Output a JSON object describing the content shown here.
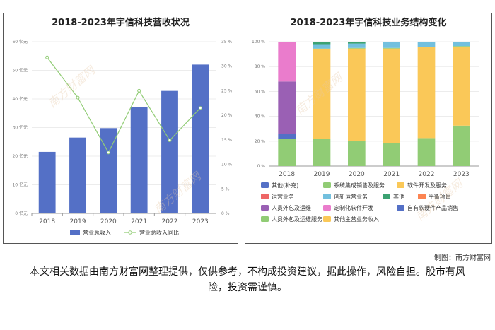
{
  "footer": {
    "credit": "制图：南方财富网",
    "disclaimer": "本文相关数据由南方财富网整理提供，仅供参考，不构成投资建议，据此操作，风险自担。股市有风险，投资需谨慎。"
  },
  "watermark_text": "南方财富网",
  "chart_data": [
    {
      "type": "bar",
      "title": "2018-2023年宇信科技营收状况",
      "categories": [
        "2018",
        "2019",
        "2020",
        "2021",
        "2022",
        "2023"
      ],
      "y_left": {
        "ticks": [
          "0 亿元",
          "10 亿元",
          "20 亿元",
          "30 亿元",
          "40 亿元",
          "50 亿元",
          "60 亿元"
        ],
        "ylim": [
          0,
          60
        ]
      },
      "y_right": {
        "ticks": [
          "0 %",
          "5 %",
          "10 %",
          "15 %",
          "20 %",
          "25 %",
          "30 %",
          "35 %"
        ],
        "ylim": [
          0,
          35
        ]
      },
      "series": [
        {
          "name": "营业总收入",
          "kind": "bar",
          "axis": "left",
          "color": "#5470c6",
          "values": [
            21.5,
            26.5,
            29.8,
            37.2,
            42.8,
            52.0
          ]
        },
        {
          "name": "营业总收入同比",
          "kind": "line",
          "axis": "right",
          "color": "#91cc75",
          "values": [
            31.8,
            23.6,
            12.4,
            25.0,
            14.9,
            21.5
          ]
        }
      ],
      "legend": "bottom",
      "grid": true
    },
    {
      "type": "bar",
      "stacked": true,
      "title": "2018-2023年宇信科技业务结构变化",
      "categories": [
        "2018",
        "2019",
        "2020",
        "2021",
        "2022",
        "2023"
      ],
      "y_ticks": [
        "0 %",
        "20 %",
        "40 %",
        "60 %",
        "80 %",
        "100 %"
      ],
      "ylim": [
        0,
        100
      ],
      "series": [
        {
          "name": "人员外包及运维服务",
          "color": "#91cc75",
          "values": [
            22,
            22,
            20,
            18.5,
            22.5,
            32.5
          ]
        },
        {
          "name": "自有软硬件产品销售",
          "color": "#5470c6",
          "values": [
            4,
            0,
            0,
            0,
            0,
            0
          ]
        },
        {
          "name": "人员外包及运维",
          "color": "#9a60b4",
          "values": [
            42,
            0,
            0,
            0,
            0,
            0
          ]
        },
        {
          "name": "定制化软件开发",
          "color": "#ea7ccc",
          "values": [
            31.5,
            0,
            0,
            0,
            0,
            0
          ]
        },
        {
          "name": "其他主营业务收入",
          "color": "#fac858",
          "values": [
            0,
            0,
            0,
            0,
            0,
            0
          ]
        },
        {
          "name": "软件开发及服务",
          "color": "#fac858",
          "values": [
            0,
            72,
            74.5,
            76,
            73,
            63.5
          ]
        },
        {
          "name": "系统集成销售及服务",
          "color": "#91cc75",
          "values": [
            0,
            0.5,
            0.5,
            0.5,
            0.5,
            0.5
          ]
        },
        {
          "name": "创新运营业务",
          "color": "#73c0de",
          "values": [
            0,
            3.5,
            3.5,
            5,
            4,
            3.5
          ]
        },
        {
          "name": "其他",
          "color": "#3ba272",
          "values": [
            0,
            2,
            1.5,
            0,
            0,
            0
          ]
        },
        {
          "name": "平衡项目",
          "color": "#fc8452",
          "values": [
            0,
            0,
            0,
            0,
            0,
            0
          ]
        },
        {
          "name": "运营业务",
          "color": "#ee6666",
          "values": [
            0,
            0,
            0,
            0,
            0,
            0
          ]
        },
        {
          "name": "其他(补充)",
          "color": "#5470c6",
          "values": [
            0.5,
            0,
            0,
            0,
            0,
            0
          ]
        }
      ],
      "legend_rows": [
        [
          "其他(补充)",
          "系统集成销售及服务",
          "软件开发及服务"
        ],
        [
          "运营业务",
          "创新运营业务",
          "其他",
          "平衡项目"
        ],
        [
          "人员外包及运维",
          "定制化软件开发",
          "自有软硬件产品销售"
        ],
        [
          "人员外包及运维服务",
          "其他主营业务收入"
        ]
      ],
      "legend": "bottom",
      "grid": true
    }
  ]
}
